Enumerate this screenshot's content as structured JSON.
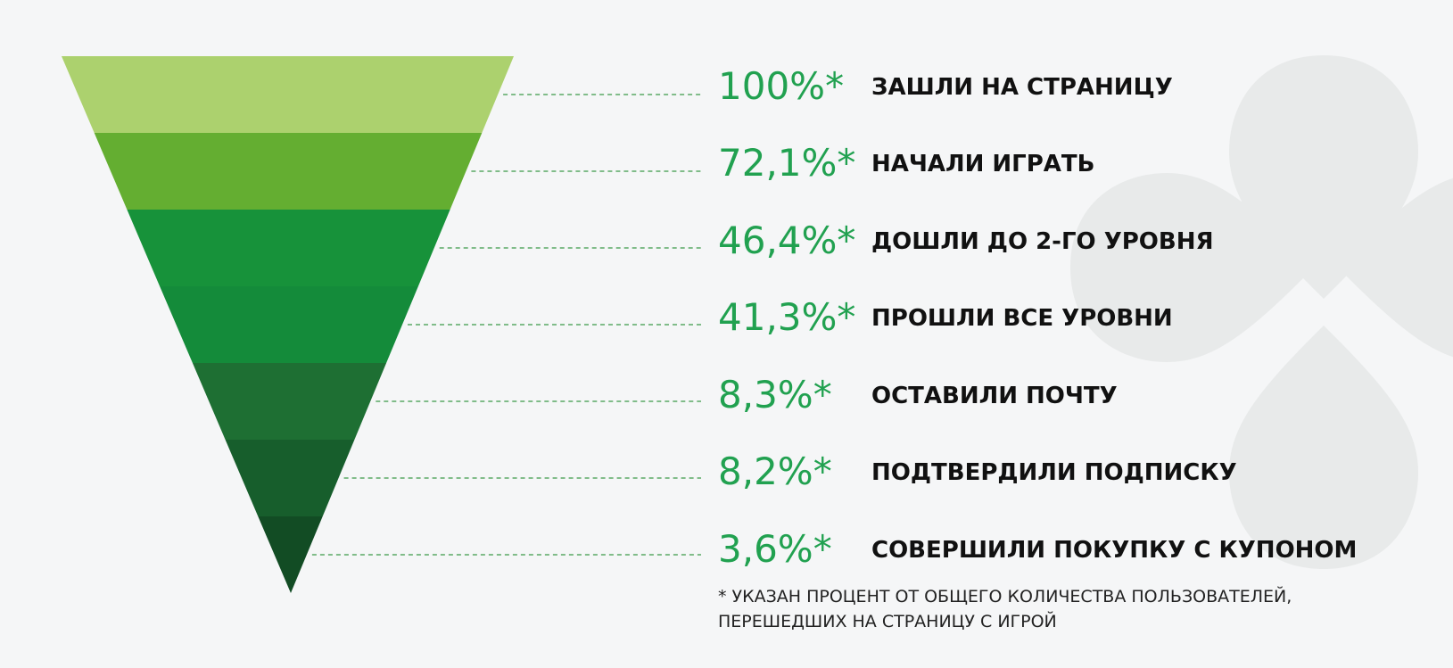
{
  "chart_data": {
    "type": "funnel",
    "stages": [
      {
        "value": "100%*",
        "label": "ЗАШЛИ НА СТРАНИЦУ",
        "color": "#acd16e"
      },
      {
        "value": "72,1%*",
        "label": "НАЧАЛИ ИГРАТЬ",
        "color": "#64ae31"
      },
      {
        "value": "46,4%*",
        "label": "ДОШЛИ ДО 2-ГО УРОВНЯ",
        "color": "#17923a"
      },
      {
        "value": "41,3%*",
        "label": "ПРОШЛИ ВСЕ УРОВНИ",
        "color": "#148b3a"
      },
      {
        "value": "8,3%*",
        "label": "ОСТАВИЛИ ПОЧТУ",
        "color": "#1e6f33"
      },
      {
        "value": "8,2%*",
        "label": "ПОДТВЕРДИЛИ ПОДПИСКУ",
        "color": "#175e2c"
      },
      {
        "value": "3,6%*",
        "label": "СОВЕРШИЛИ ПОКУПКУ С КУПОНОМ",
        "color": "#124c24"
      }
    ],
    "footnote_line1": "* УКАЗАН ПРОЦЕНТ ОТ ОБЩЕГО КОЛИЧЕСТВА ПОЛЬЗОВАТЕЛЕЙ,",
    "footnote_line2": "ПЕРЕШЕДШИХ НА СТРАНИЦУ С ИГРОЙ"
  },
  "colors": {
    "background": "#f5f6f7",
    "value_text": "#21a150",
    "label_text": "#111111",
    "dashed_line": "#5aa865",
    "watermark": "#e8eaea"
  }
}
